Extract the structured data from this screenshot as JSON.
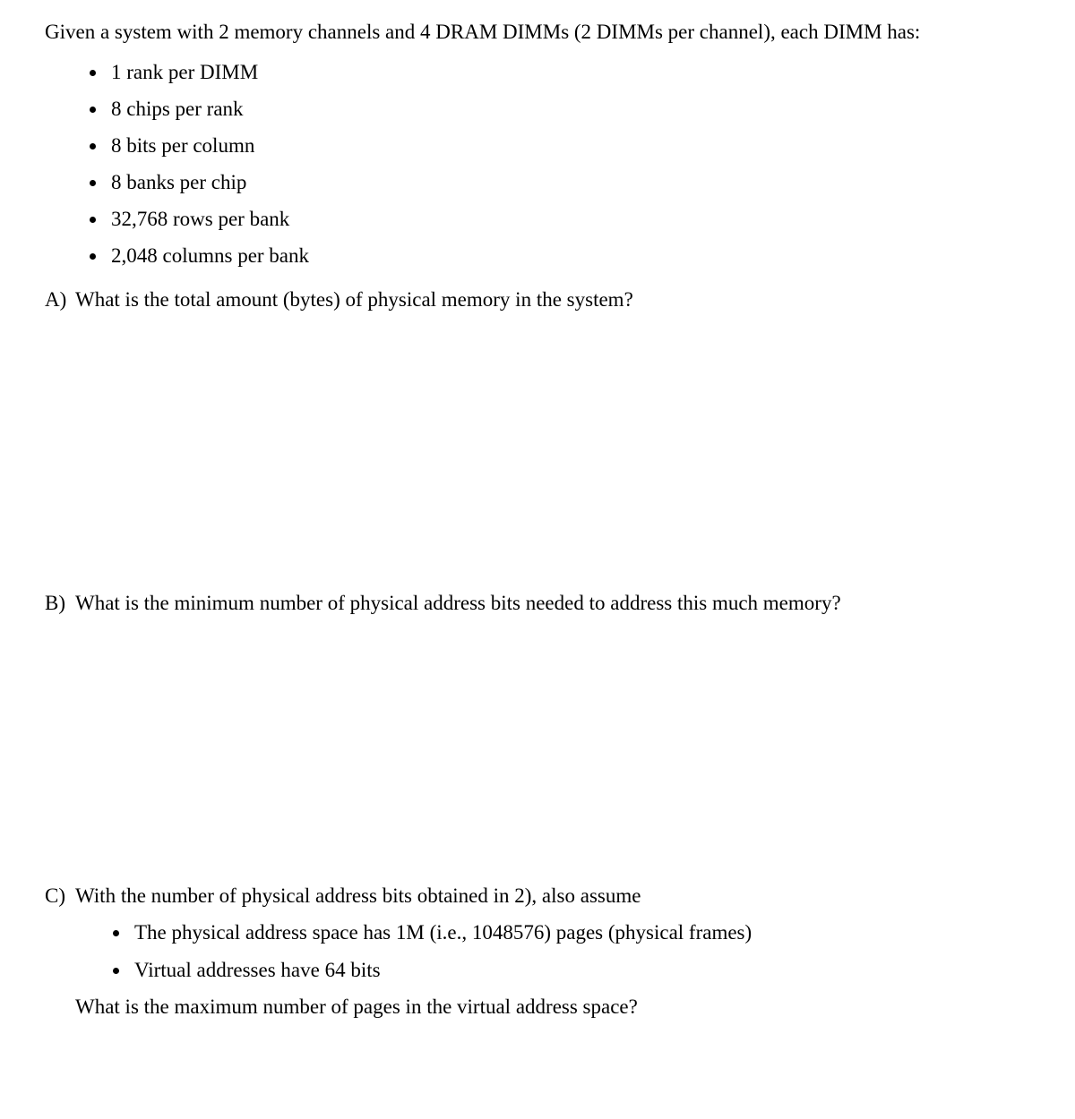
{
  "intro": "Given a system with 2 memory channels and 4 DRAM DIMMs (2 DIMMs per channel), each DIMM has:",
  "specs": [
    "1 rank per DIMM",
    "8 chips per rank",
    "8 bits per column",
    "8 banks per chip",
    "32,768 rows per bank",
    "2,048 columns per bank"
  ],
  "partA": {
    "label": "A)",
    "text": "What is the total amount (bytes) of physical memory in the system?"
  },
  "partB": {
    "label": "B)",
    "text": "What is the minimum number of physical address bits needed to address this much memory?"
  },
  "partC": {
    "label": "C)",
    "intro": "With the number of physical address bits obtained in 2), also assume",
    "bullets": [
      "The physical address space has 1M (i.e., 1048576) pages (physical frames)",
      "Virtual addresses have 64 bits"
    ],
    "final": "What is the maximum number of pages in the virtual address space?"
  }
}
